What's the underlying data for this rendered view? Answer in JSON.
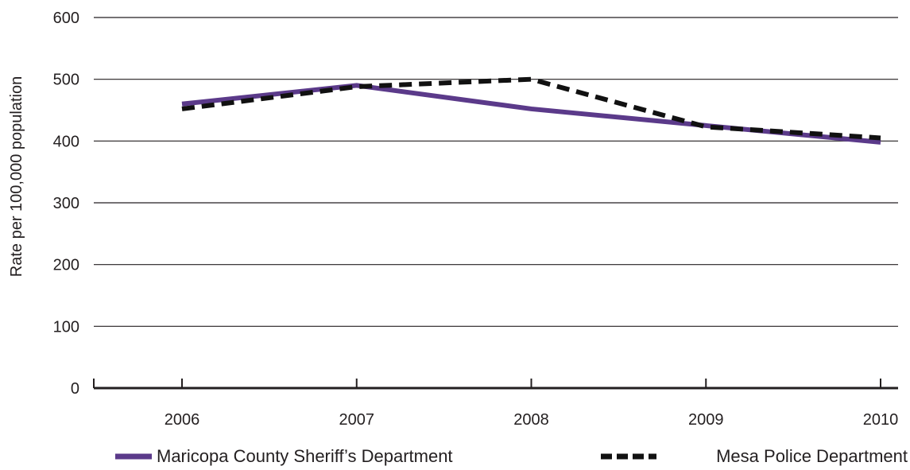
{
  "chart_data": {
    "type": "line",
    "title": "",
    "xlabel": "",
    "ylabel": "Rate per 100,000 population",
    "categories": [
      "2006",
      "2007",
      "2008",
      "2009",
      "2010"
    ],
    "ylim": [
      0,
      600
    ],
    "yticks": [
      0,
      100,
      200,
      300,
      400,
      500,
      600
    ],
    "grid": true,
    "legend_position": "bottom",
    "series": [
      {
        "name": "Maricopa County Sheriff’s Department",
        "values": [
          460,
          490,
          452,
          425,
          398
        ],
        "color": "#5b3a8a",
        "style": "solid"
      },
      {
        "name": "Mesa Police Department",
        "values": [
          452,
          488,
          500,
          423,
          405
        ],
        "color": "#111111",
        "style": "dashed"
      }
    ]
  }
}
